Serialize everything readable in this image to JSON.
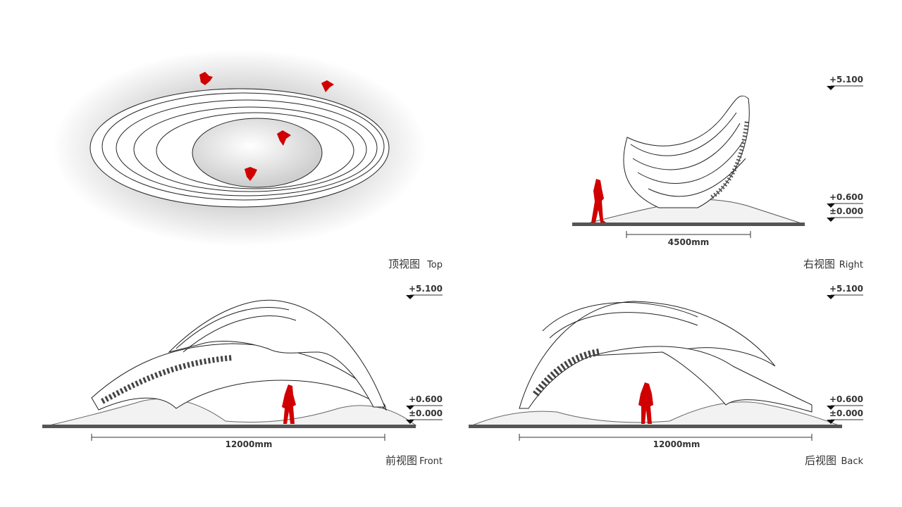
{
  "views": [
    {
      "name_cn": "顶视图",
      "name_en": "Top"
    },
    {
      "name_cn": "右视图",
      "name_en": "Right",
      "dimension": "4500mm",
      "levels": [
        "+5.100",
        "+0.600",
        "±0.000"
      ]
    },
    {
      "name_cn": "前视图",
      "name_en": "Front",
      "dimension": "12000mm",
      "levels": [
        "+5.100",
        "+0.600",
        "±0.000"
      ]
    },
    {
      "name_cn": "后视图",
      "name_en": "Back",
      "dimension": "12000mm",
      "levels": [
        "+5.100",
        "+0.600",
        "±0.000"
      ]
    }
  ]
}
